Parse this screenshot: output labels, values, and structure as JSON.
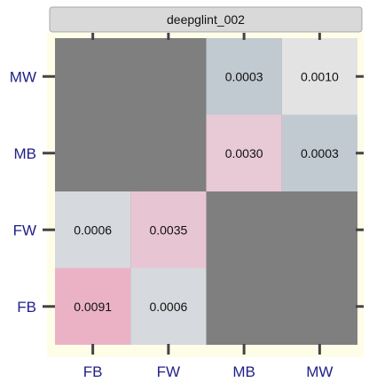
{
  "chart_data": {
    "type": "heatmap",
    "panel_title": "deepglint_002",
    "x_categories": [
      "FB",
      "FW",
      "MB",
      "MW"
    ],
    "y_categories": [
      "FB",
      "FW",
      "MB",
      "MW"
    ],
    "grid": false,
    "colors": {
      "panel_background": "#7f7f7f",
      "outer_background": "#fefee8",
      "strip_background": "#d9d9d9",
      "tick_color": "#444444",
      "axis_text": "#1f1f8a"
    },
    "cells": [
      {
        "x": "MB",
        "y": "MW",
        "value": 0.0003,
        "label": "0.0003",
        "color": "#c1c9d1"
      },
      {
        "x": "MW",
        "y": "MW",
        "value": 0.001,
        "label": "0.0010",
        "color": "#e3e3e3"
      },
      {
        "x": "MB",
        "y": "MB",
        "value": 0.003,
        "label": "0.0030",
        "color": "#e8c9d6"
      },
      {
        "x": "MW",
        "y": "MB",
        "value": 0.0003,
        "label": "0.0003",
        "color": "#c1c9d1"
      },
      {
        "x": "FB",
        "y": "FW",
        "value": 0.0006,
        "label": "0.0006",
        "color": "#d6d9dd"
      },
      {
        "x": "FW",
        "y": "FW",
        "value": 0.0035,
        "label": "0.0035",
        "color": "#e8c5d3"
      },
      {
        "x": "FB",
        "y": "FB",
        "value": 0.0091,
        "label": "0.0091",
        "color": "#ebb2c6"
      },
      {
        "x": "FW",
        "y": "FB",
        "value": 0.0006,
        "label": "0.0006",
        "color": "#d6d9dd"
      }
    ]
  }
}
